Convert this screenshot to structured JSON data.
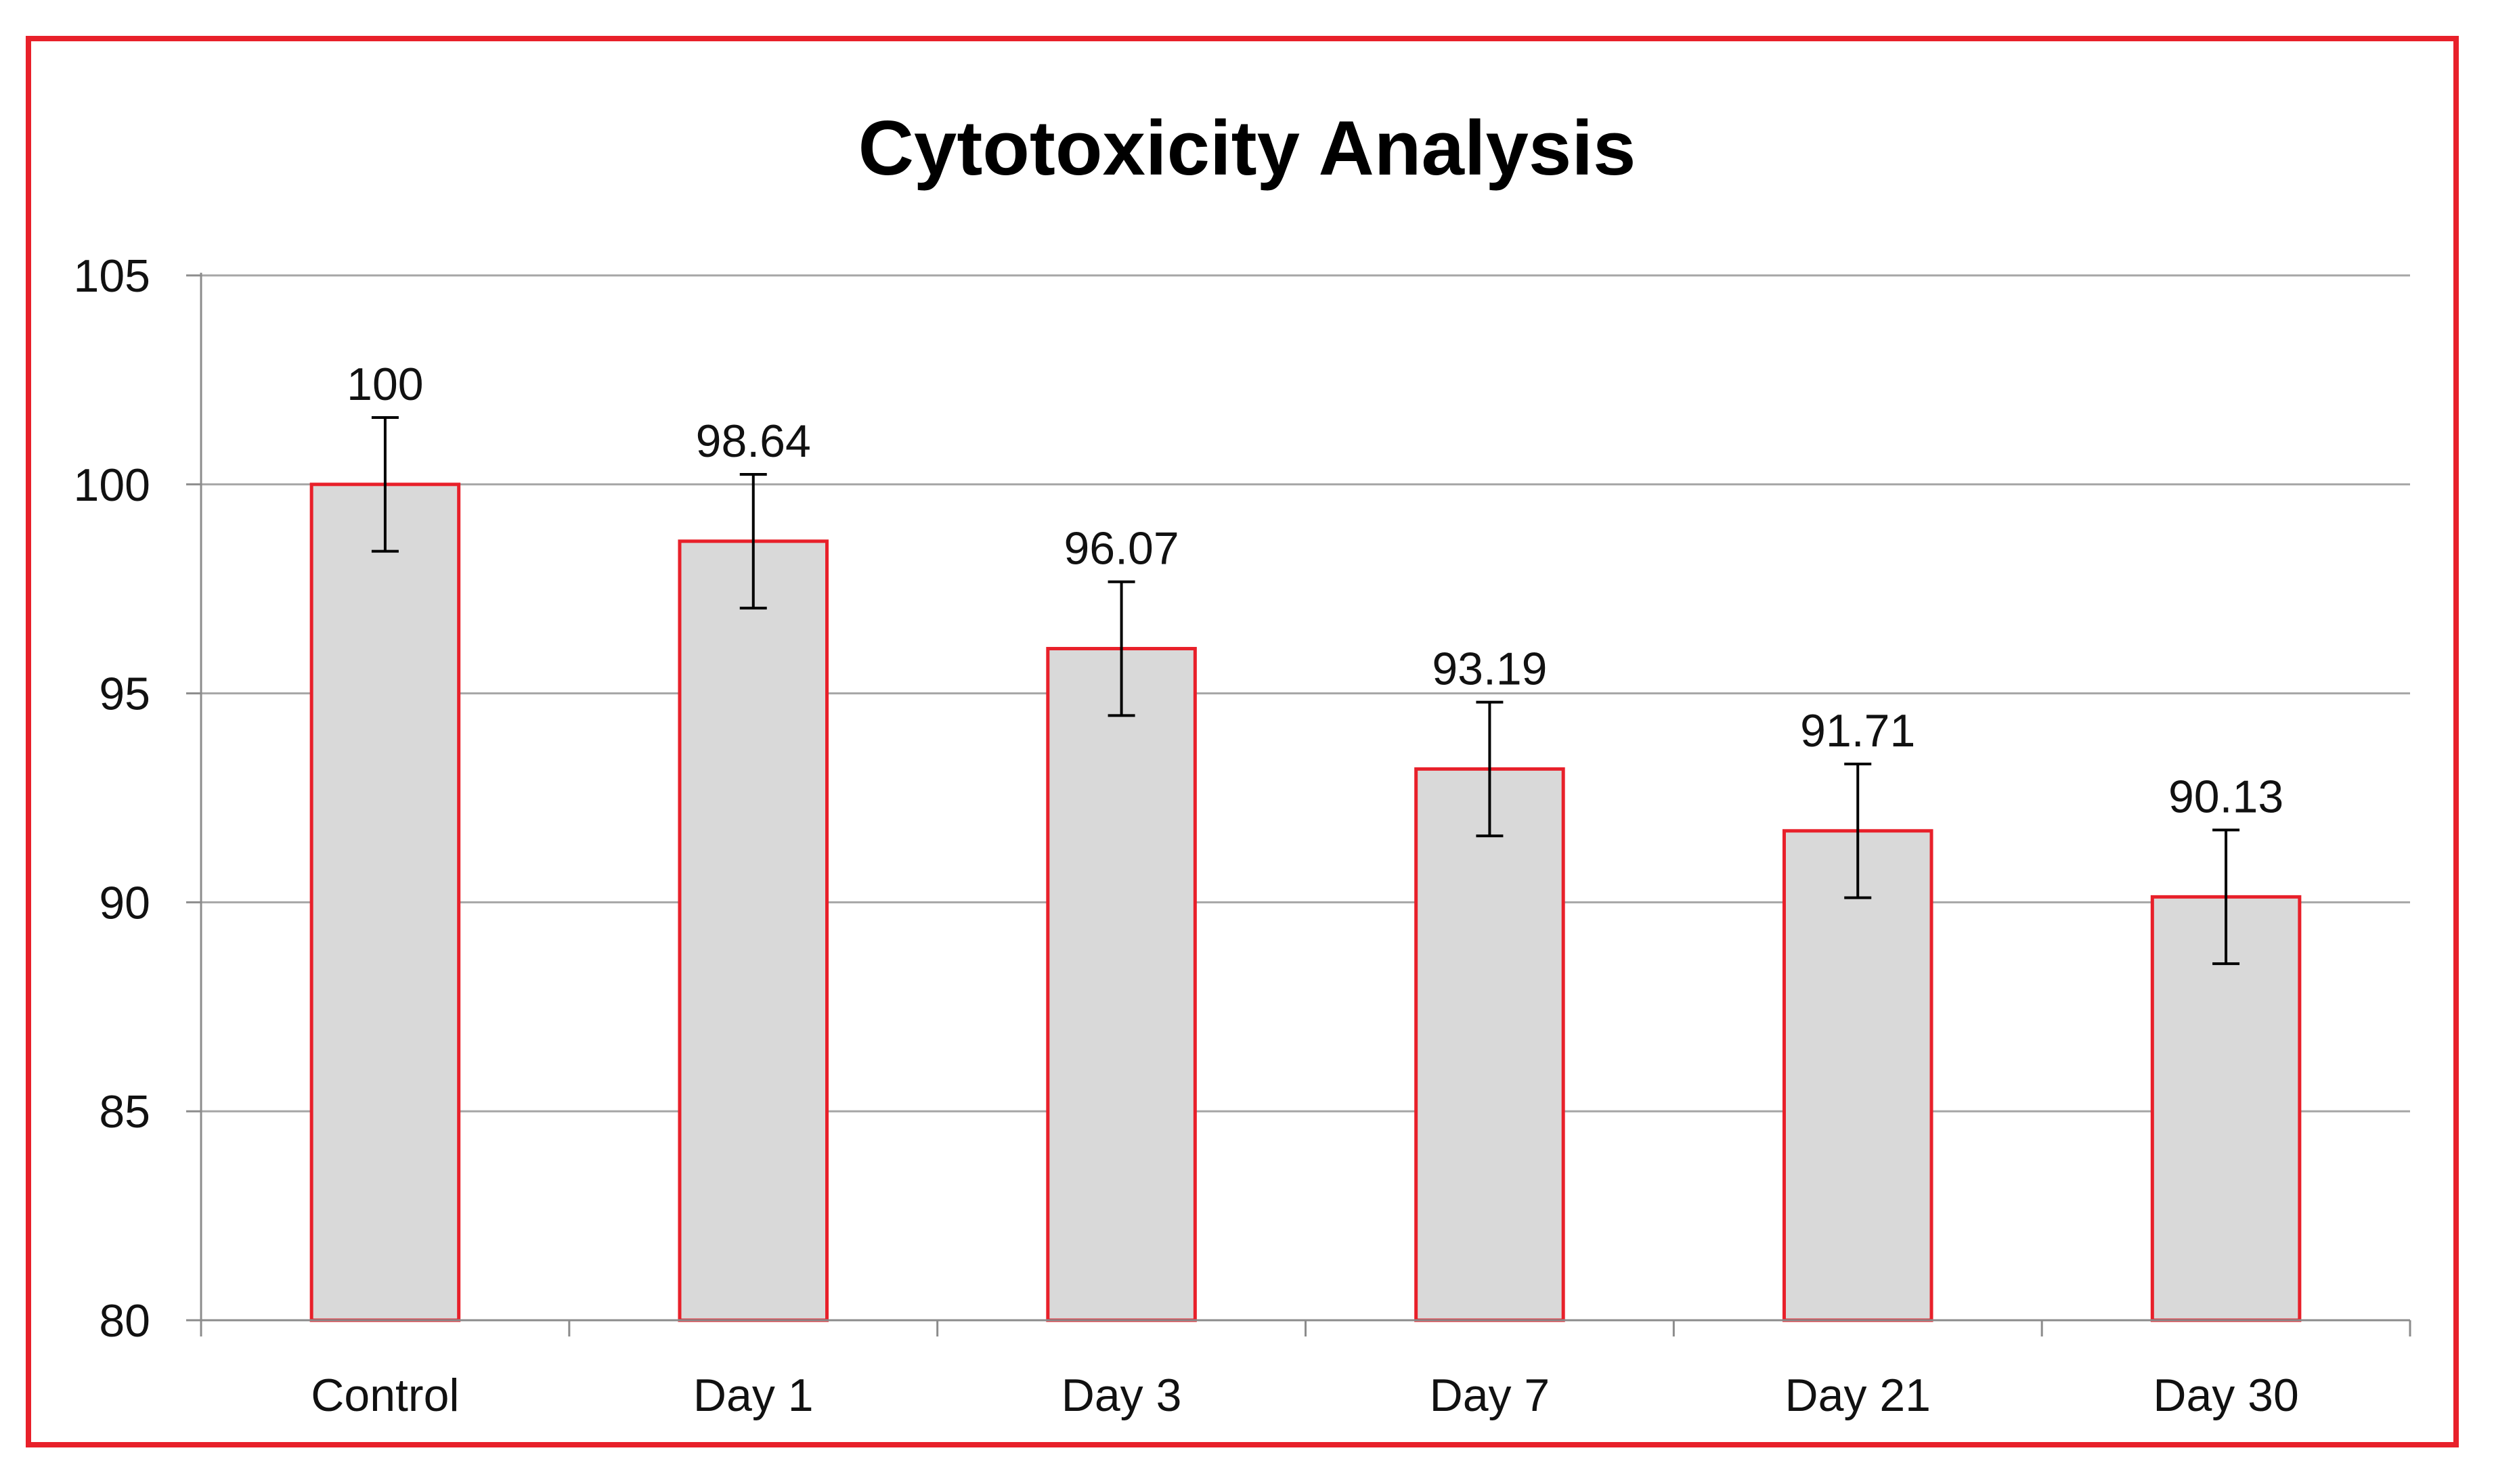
{
  "chart_data": {
    "type": "bar",
    "title": "Cytotoxicity Analysis",
    "xlabel": "",
    "ylabel": "",
    "categories": [
      "Control",
      "Day 1",
      "Day 3",
      "Day 7",
      "Day 21",
      "Day 30"
    ],
    "values": [
      100,
      98.64,
      96.07,
      93.19,
      91.71,
      90.13
    ],
    "data_labels": [
      "100",
      "98.64",
      "96.07",
      "93.19",
      "91.71",
      "90.13"
    ],
    "error_bars": [
      1.6,
      1.6,
      1.6,
      1.6,
      1.6,
      1.6
    ],
    "ylim": [
      80,
      105
    ],
    "yticks": [
      80,
      85,
      90,
      95,
      100,
      105
    ],
    "ytick_labels": [
      "80",
      "85",
      "90",
      "95",
      "100",
      "105"
    ],
    "grid": true,
    "legend": "none",
    "colors": {
      "bar_fill": "#d9d9d9",
      "bar_edge": "#e8202a",
      "frame": "#e8202a",
      "grid": "#a6a6a6",
      "axis": "#8c8c8c",
      "error_bar": "#000000"
    }
  }
}
